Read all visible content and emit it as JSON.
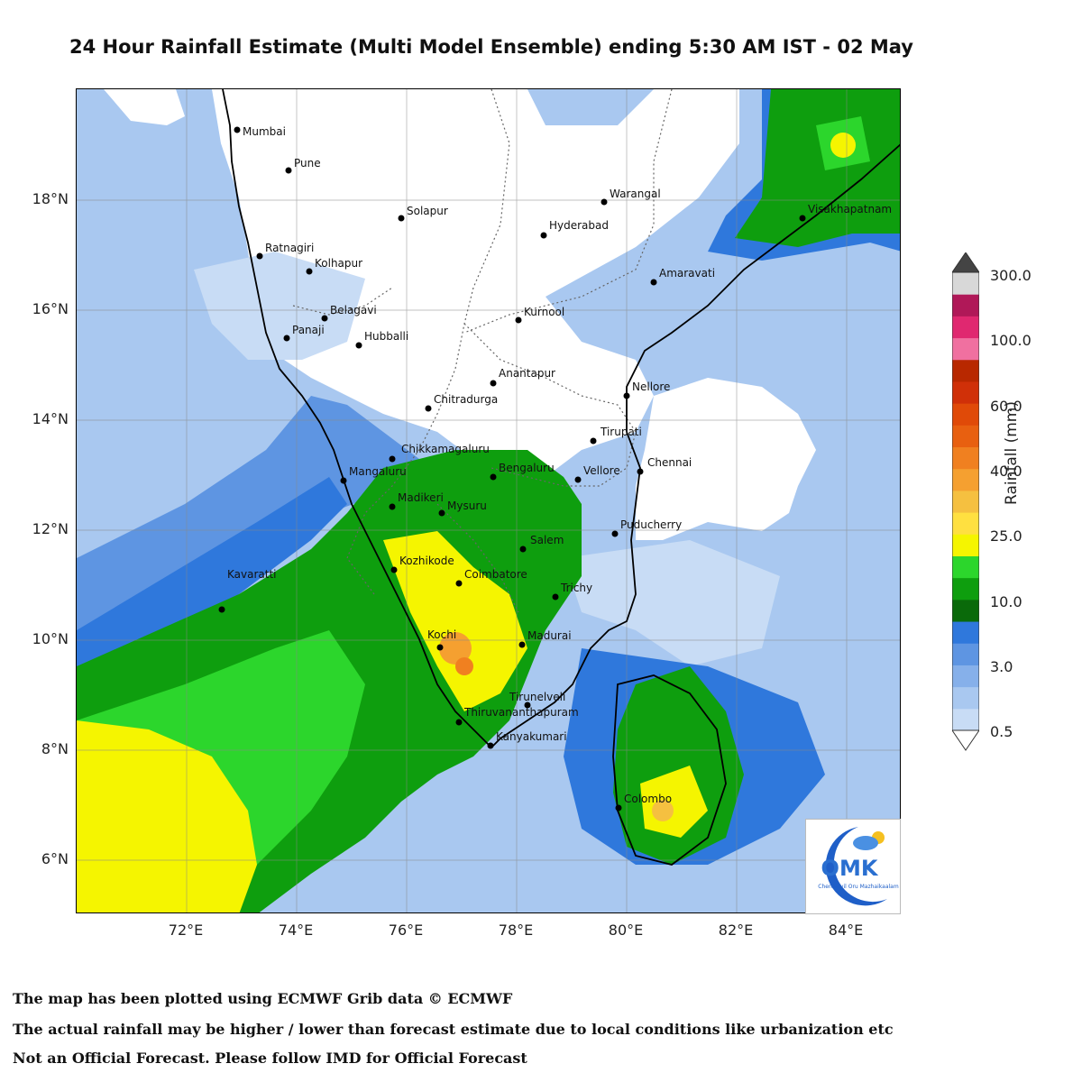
{
  "title": "24 Hour Rainfall Estimate (Multi Model Ensemble) ending 5:30 AM IST - 02 May",
  "map": {
    "lat_ticks": [
      "18°N",
      "16°N",
      "14°N",
      "12°N",
      "10°N",
      "8°N",
      "6°N"
    ],
    "lon_ticks": [
      "72°E",
      "74°E",
      "76°E",
      "78°E",
      "80°E",
      "82°E",
      "84°E"
    ],
    "cities": [
      "Mumbai",
      "Pune",
      "Warangal",
      "Solapur",
      "Hyderabad",
      "Visakhapatnam",
      "Ratnagiri",
      "Kolhapur",
      "Amaravati",
      "Belagavi",
      "Kurnool",
      "Panaji",
      "Hubballi",
      "Anantapur",
      "Nellore",
      "Chitradurga",
      "Tirupati",
      "Chikkamagaluru",
      "Chennai",
      "Mangaluru",
      "Bengaluru",
      "Vellore",
      "Madikeri",
      "Mysuru",
      "Puducherry",
      "Salem",
      "Kozhikode",
      "Coimbatore",
      "Trichy",
      "Kavaratti",
      "Kochi",
      "Madurai",
      "Tirunelveli",
      "Thiruvananthapuram",
      "Kanyakumari",
      "Colombo"
    ]
  },
  "colorbar": {
    "title": "Rainfall (mm)",
    "labels": [
      "300.0",
      "100.0",
      "60.0",
      "40.0",
      "25.0",
      "10.0",
      "3.0",
      "0.5"
    ],
    "colors": [
      "#c8dcf5",
      "#a9c8f0",
      "#86b0ea",
      "#5e95e2",
      "#2f78dc",
      "#0a6a0a",
      "#0e9e0e",
      "#2cd62c",
      "#f5f500",
      "#ffe040",
      "#f5c040",
      "#f5a030",
      "#f08020",
      "#e86010",
      "#e04a08",
      "#d03008",
      "#b82800",
      "#f070a0",
      "#e02870",
      "#b01858",
      "#d8d8d8"
    ]
  },
  "logo": {
    "text": "OMK",
    "subtitle": "Chennaiyil Oru Mazhaikaalam"
  },
  "footnotes": [
    "The map has been plotted using ECMWF Grib data © ECMWF",
    "The actual rainfall may be higher / lower than forecast estimate due to local conditions like urbanization etc",
    "Not an Official Forecast. Please follow IMD for Official Forecast"
  ]
}
